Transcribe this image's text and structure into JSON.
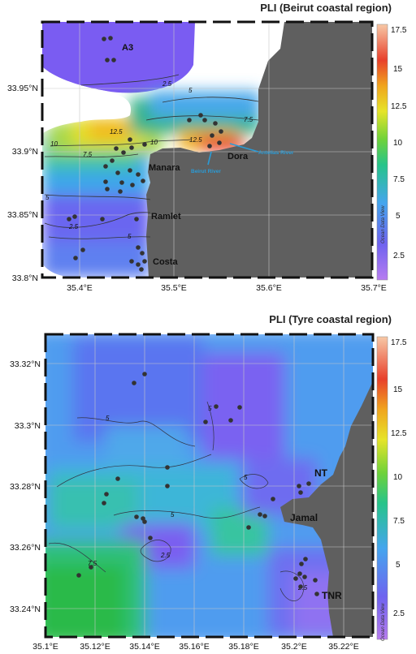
{
  "panels": [
    {
      "id": "beirut",
      "title": "PLI (Beirut coastal region)",
      "y_ticks": [
        "33.95°N",
        "33.9°N",
        "33.85°N",
        "33.8°N"
      ],
      "x_ticks": [
        "35.4°E",
        "35.5°E",
        "35.6°E",
        "35.7°E"
      ],
      "labels": {
        "A3": "A3",
        "Manara": "Manara",
        "Ramlet": "Ramlet",
        "Costa": "Costa",
        "Dora": "Dora",
        "antelias": "Antelias River",
        "beirut_river": "Beirut River"
      },
      "contours": [
        "2.5",
        "5",
        "7.5",
        "10",
        "12.5",
        "10",
        "7.5",
        "5",
        "2.5",
        "5",
        "12.5",
        "7.5",
        "10"
      ],
      "colorbar": [
        "17.5",
        "15",
        "12.5",
        "10",
        "7.5",
        "5",
        "2.5"
      ],
      "odv": "Ocean Data View"
    },
    {
      "id": "tyre",
      "title": "PLI (Tyre coastal region)",
      "y_ticks": [
        "33.32°N",
        "33.3°N",
        "33.28°N",
        "33.26°N",
        "33.24°N"
      ],
      "x_ticks": [
        "35.1°E",
        "35.12°E",
        "35.14°E",
        "35.16°E",
        "35.18°E",
        "35.2°E",
        "35.22°E"
      ],
      "labels": {
        "NT": "NT",
        "Jamal": "Jamal",
        "TNR": "TNR"
      },
      "contours": [
        "5",
        "5",
        "5",
        "5",
        "2.5",
        "7.5",
        "2.5"
      ],
      "colorbar": [
        "17.5",
        "15",
        "12.5",
        "10",
        "7.5",
        "5",
        "2.5"
      ],
      "odv": "Ocean Data View"
    }
  ],
  "colors": {
    "land": "#5f5f5f",
    "station": "#333333",
    "river": "#2a9bd6"
  }
}
